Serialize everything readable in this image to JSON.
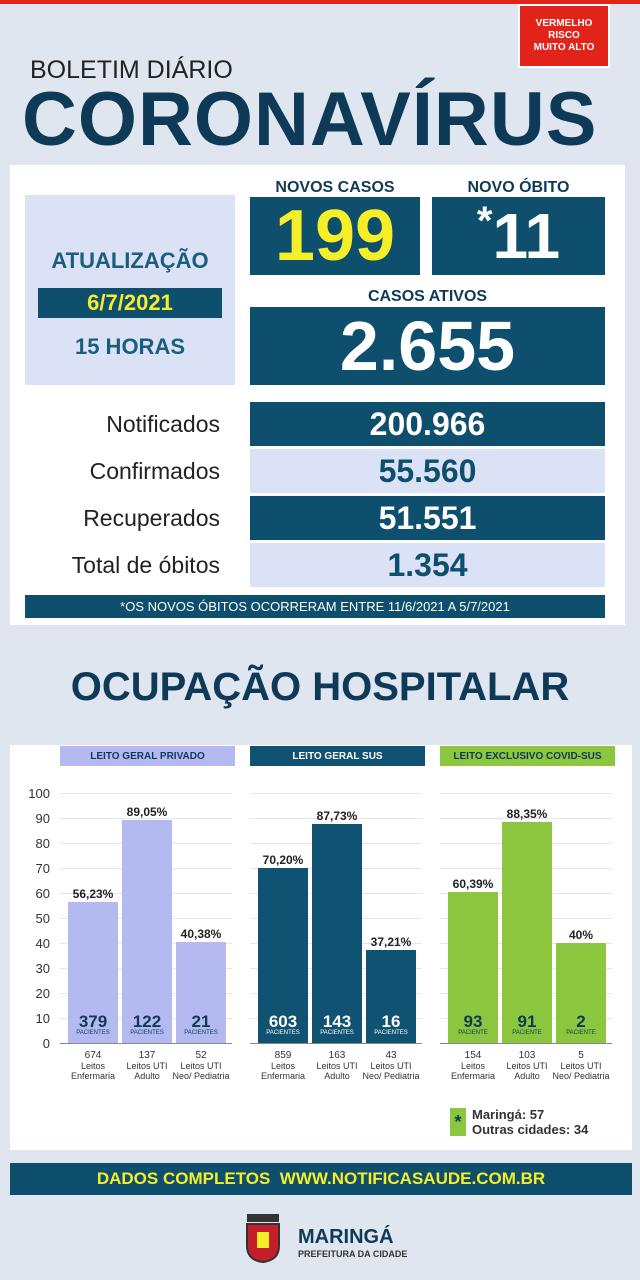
{
  "alert": {
    "lines": [
      "VERMELHO",
      "RISCO",
      "MUITO ALTO"
    ]
  },
  "header": {
    "subtitle": "BOLETIM DIÁRIO",
    "title": "CORONAVÍRUS"
  },
  "update": {
    "label": "ATUALIZAÇÃO",
    "date": "6/7/2021",
    "time": "15 HORAS"
  },
  "new_cases": {
    "label": "NOVOS CASOS",
    "value": "199"
  },
  "new_deaths": {
    "label": "NOVO ÓBITO",
    "mark": "*",
    "value": "11"
  },
  "active_cases": {
    "label": "CASOS ATIVOS",
    "value": "2.655"
  },
  "totals": [
    {
      "label": "Notificados",
      "value": "200.966"
    },
    {
      "label": "Confirmados",
      "value": "55.560"
    },
    {
      "label": "Recuperados",
      "value": "51.551"
    },
    {
      "label": "Total de óbitos",
      "value": "1.354"
    }
  ],
  "footnote": "*OS NOVOS ÓBITOS OCORRERAM ENTRE 11/6/2021 A 5/7/2021",
  "section_title": "OCUPAÇÃO HOSPITALAR",
  "chart_data": [
    {
      "type": "bar",
      "title": "LEITO GERAL PRIVADO",
      "categories": [
        "Leitos Enfermaria",
        "Leitos UTI Adulto",
        "Leitos UTI Neo/ Pediatria"
      ],
      "values": [
        56.23,
        89.05,
        40.38
      ],
      "value_labels": [
        "56,23%",
        "89,05%",
        "40,38%"
      ],
      "patients": [
        379,
        122,
        21
      ],
      "patients_label": "PACIENTES",
      "beds": [
        674,
        137,
        52
      ],
      "color": "#b4baf0",
      "ylim": [
        0,
        100
      ],
      "yticks": [
        0,
        10,
        20,
        30,
        40,
        50,
        60,
        70,
        80,
        90,
        100
      ],
      "grid": true
    },
    {
      "type": "bar",
      "title": "LEITO GERAL SUS",
      "categories": [
        "Leitos Enfermaria",
        "Leitos UTI Adulto",
        "Leitos UTI Neo/ Pediatria"
      ],
      "values": [
        70.2,
        87.73,
        37.21
      ],
      "value_labels": [
        "70,20%",
        "87,73%",
        "37,21%"
      ],
      "patients": [
        603,
        143,
        16
      ],
      "patients_label": "PACIENTES",
      "beds": [
        859,
        163,
        43
      ],
      "color": "#0f5271",
      "ylim": [
        0,
        100
      ],
      "yticks": [
        0,
        10,
        20,
        30,
        40,
        50,
        60,
        70,
        80,
        90,
        100
      ],
      "grid": true
    },
    {
      "type": "bar",
      "title": "LEITO EXCLUSIVO COVID-SUS",
      "categories": [
        "Leitos Enfermaria",
        "Leitos UTI Adulto",
        "Leitos UTI Neo/ Pediatria"
      ],
      "values": [
        60.39,
        88.35,
        40
      ],
      "value_labels": [
        "60,39%",
        "88,35%",
        "40%"
      ],
      "patients": [
        93,
        91,
        2
      ],
      "patients_label": "PACIENTE",
      "beds": [
        154,
        103,
        5
      ],
      "color": "#8cc63e",
      "ylim": [
        0,
        100
      ],
      "yticks": [
        0,
        10,
        20,
        30,
        40,
        50,
        60,
        70,
        80,
        90,
        100
      ],
      "grid": true
    }
  ],
  "legend": {
    "mark": "*",
    "lines": [
      "Maringá: 57",
      "Outras cidades: 34"
    ]
  },
  "footer": "DADOS COMPLETOS  WWW.NOTIFICASAUDE.COM.BR",
  "logo": {
    "name": "MARINGÁ",
    "subtitle": "PREFEITURA DA CIDADE"
  }
}
